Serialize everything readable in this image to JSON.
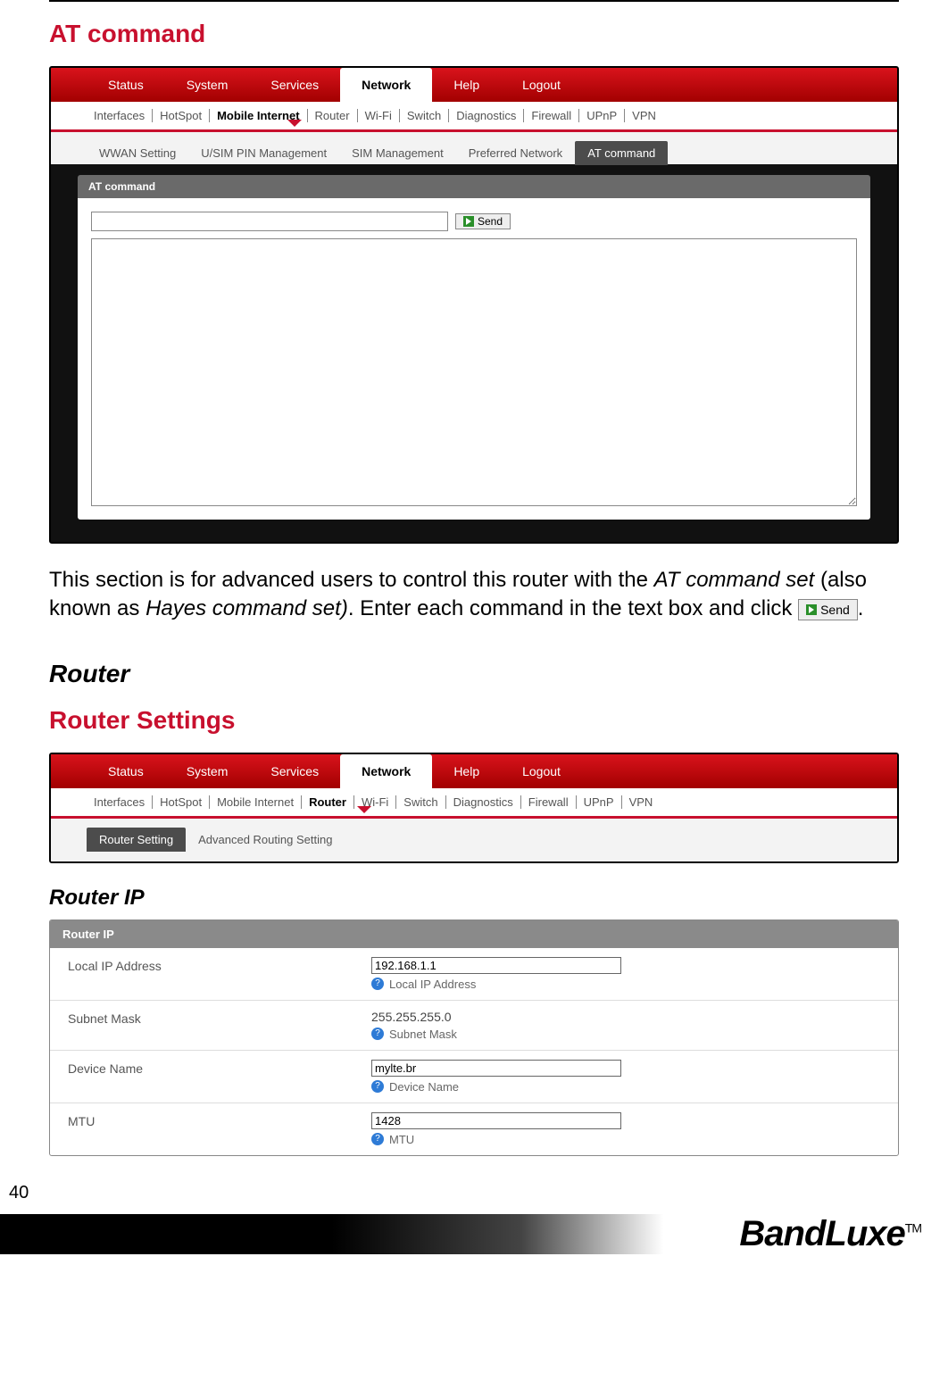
{
  "section1_title": "AT command",
  "screenshot1": {
    "topnav": [
      "Status",
      "System",
      "Services",
      "Network",
      "Help",
      "Logout"
    ],
    "topnav_active_index": 3,
    "subnav": [
      "Interfaces",
      "HotSpot",
      "Mobile Internet",
      "Router",
      "Wi-Fi",
      "Switch",
      "Diagnostics",
      "Firewall",
      "UPnP",
      "VPN"
    ],
    "subnav_active_index": 2,
    "tabs": [
      "WWAN Setting",
      "U/SIM PIN Management",
      "SIM Management",
      "Preferred Network",
      "AT command"
    ],
    "tabs_active_index": 4,
    "panel_header": "AT command",
    "send_label": "Send",
    "input_value": "",
    "output_value": ""
  },
  "desc": {
    "part1": "This section is for advanced users to control this router with the ",
    "italic1": "AT command set",
    "part2": " (also known as ",
    "italic2": "Hayes command set)",
    "part3": ". Enter each command in the text box and click ",
    "btn_label": "Send",
    "part4": "."
  },
  "section2_title": "Router",
  "section3_title": "Router Settings",
  "screenshot2": {
    "topnav": [
      "Status",
      "System",
      "Services",
      "Network",
      "Help",
      "Logout"
    ],
    "topnav_active_index": 3,
    "subnav": [
      "Interfaces",
      "HotSpot",
      "Mobile Internet",
      "Router",
      "Wi-Fi",
      "Switch",
      "Diagnostics",
      "Firewall",
      "UPnP",
      "VPN"
    ],
    "subnav_active_index": 3,
    "tabs": [
      "Router Setting",
      "Advanced Routing Setting"
    ],
    "tabs_active_index": 0
  },
  "section4_title": "Router IP",
  "router_ip_panel": {
    "header": "Router IP",
    "rows": [
      {
        "label": "Local IP Address",
        "type": "input",
        "value": "192.168.1.1",
        "help": "Local IP Address"
      },
      {
        "label": "Subnet Mask",
        "type": "static",
        "value": "255.255.255.0",
        "help": "Subnet Mask"
      },
      {
        "label": "Device Name",
        "type": "input",
        "value": "mylte.br",
        "help": "Device Name"
      },
      {
        "label": "MTU",
        "type": "input",
        "value": "1428",
        "help": "MTU"
      }
    ]
  },
  "page_number": "40",
  "brand": "BandLuxe",
  "trademark": "TM",
  "colors": {
    "red_primary": "#c8102e",
    "nav_grad_top": "#d9131c",
    "nav_grad_bot": "#a20000",
    "panel_hdr_grey": "#8a8a8a",
    "dark_bg": "#111111",
    "tab_active_bg": "#4c4c4c",
    "help_icon": "#2e7bd6"
  }
}
